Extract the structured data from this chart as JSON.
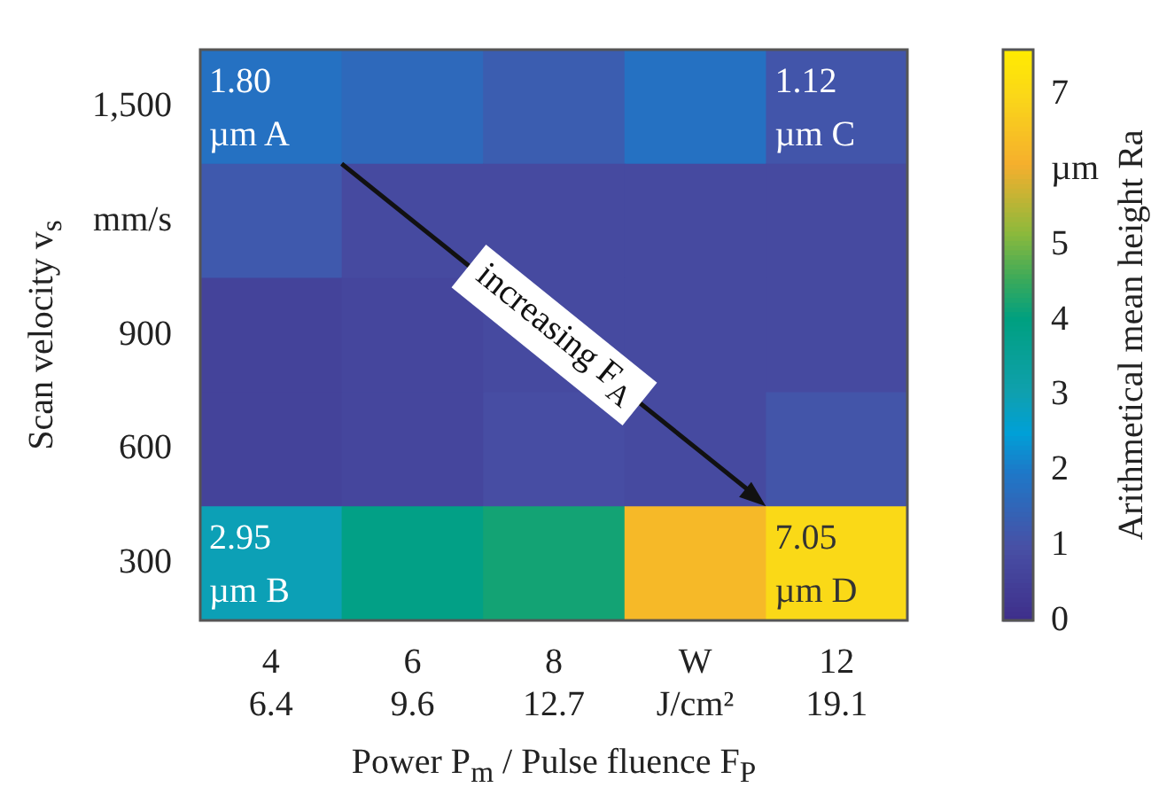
{
  "chart_data": {
    "type": "heatmap",
    "xlabel": "Power P$_{m}$ / Pulse fluence F$_{P}$",
    "ylabel": "Scan velocity v$_{s}$",
    "clabel": "Arithmetical mean height Ra",
    "categories": [
      "4\n6.4",
      "6\n9.6",
      "8\n12.7",
      "W\nJ/cm²",
      "12\n19.1"
    ],
    "y_categories": [
      "1,500",
      "mm/s",
      "900",
      "600",
      "300"
    ],
    "cells": [
      [
        1.8,
        1.6,
        1.3,
        1.8,
        1.12
      ],
      [
        1.2,
        0.8,
        0.8,
        0.8,
        0.8
      ],
      [
        0.6,
        0.7,
        0.8,
        0.8,
        0.8
      ],
      [
        0.6,
        0.7,
        0.9,
        0.8,
        1.1
      ],
      [
        2.95,
        3.9,
        4.2,
        6.3,
        7.05
      ]
    ],
    "cell_labels": [
      [
        "1.80\nµm A",
        null,
        null,
        null,
        "1.12\nµm C"
      ],
      [
        null,
        null,
        null,
        null,
        null
      ],
      [
        null,
        null,
        null,
        null,
        null
      ],
      [
        null,
        null,
        null,
        null,
        null
      ],
      [
        "2.95\nµm B",
        null,
        null,
        null,
        "7.05\nµm D"
      ]
    ],
    "clim": [
      0,
      7.6
    ],
    "cticks": [
      0,
      1,
      2,
      3,
      4,
      5,
      {
        "value": 6,
        "label": "µm"
      },
      7
    ],
    "annotations": [
      "increasing F$_{A}$"
    ]
  }
}
